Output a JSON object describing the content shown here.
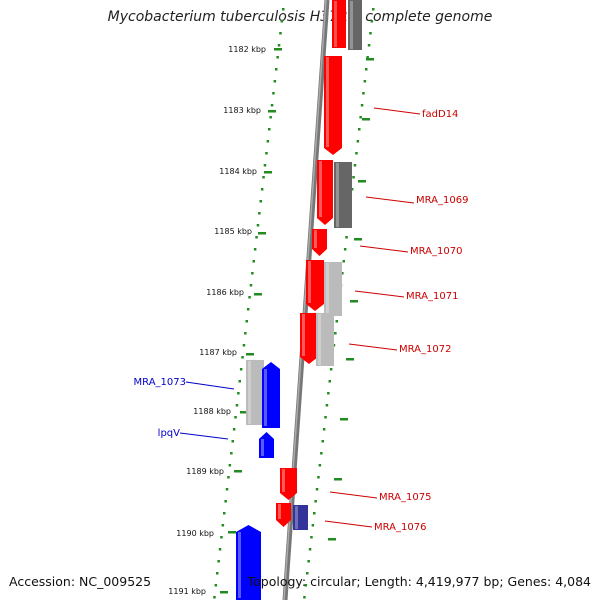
{
  "title": "Mycobacterium tuberculosis H37Ra, complete genome",
  "footer": {
    "accession": "Accession: NC_009525",
    "summary": "Topology: circular; Length: 4,419,977 bp; Genes: 4,084"
  },
  "colors": {
    "backbone": "#888888",
    "forward_gene": "#ff0000",
    "reverse_gene": "#0000ff",
    "pseudo_gene": "#bbbbbb",
    "dark_gene": "#666666",
    "navy_gene": "#333399",
    "tick_green": "#228b22",
    "forward_label": "#cc0000",
    "reverse_label": "#0000cc"
  },
  "scale_labels": [
    {
      "kbp": 1182,
      "text": "1182 kbp"
    },
    {
      "kbp": 1183,
      "text": "1183 kbp"
    },
    {
      "kbp": 1184,
      "text": "1184 kbp"
    },
    {
      "kbp": 1185,
      "text": "1185 kbp"
    },
    {
      "kbp": 1186,
      "text": "1186 kbp"
    },
    {
      "kbp": 1187,
      "text": "1187 kbp"
    },
    {
      "kbp": 1188,
      "text": "1188 kbp"
    },
    {
      "kbp": 1189,
      "text": "1189 kbp"
    },
    {
      "kbp": 1190,
      "text": "1190 kbp"
    },
    {
      "kbp": 1191,
      "text": "1191 kbp"
    }
  ],
  "gene_labels": [
    {
      "text": "fadD14",
      "strand": "forward"
    },
    {
      "text": "MRA_1069",
      "strand": "forward"
    },
    {
      "text": "MRA_1070",
      "strand": "forward"
    },
    {
      "text": "MRA_1071",
      "strand": "forward"
    },
    {
      "text": "MRA_1072",
      "strand": "forward"
    },
    {
      "text": "MRA_1073",
      "strand": "reverse"
    },
    {
      "text": "lpqV",
      "strand": "reverse"
    },
    {
      "text": "MRA_1075",
      "strand": "forward"
    },
    {
      "text": "MRA_1076",
      "strand": "forward"
    }
  ]
}
